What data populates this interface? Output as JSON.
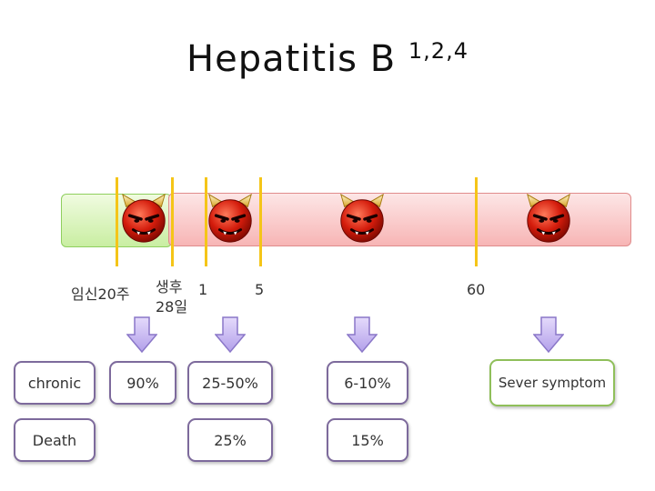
{
  "title": {
    "text": "Hepatitis B",
    "sup": "1,2,4"
  },
  "timeline_labels": {
    "week20": "임신20주",
    "day28_line1": "생후",
    "day28_line2": "28일",
    "t1": "1",
    "t5": "5",
    "t60": "60"
  },
  "row1": {
    "label": "chronic",
    "v1": "90%",
    "v2": "25-50%",
    "v3": "6-10%",
    "v4": "Sever symptom"
  },
  "row2": {
    "label": "Death",
    "v2": "25%",
    "v3": "15%"
  },
  "colors": {
    "marker": "#f5c518",
    "green_bar": "#c9eea2",
    "red_bar": "#f7b5b5",
    "box_border": "#7d6a9c",
    "arrow_fill": "#c9b8ef"
  },
  "icons": [
    "devil-icon",
    "down-arrow-icon"
  ]
}
